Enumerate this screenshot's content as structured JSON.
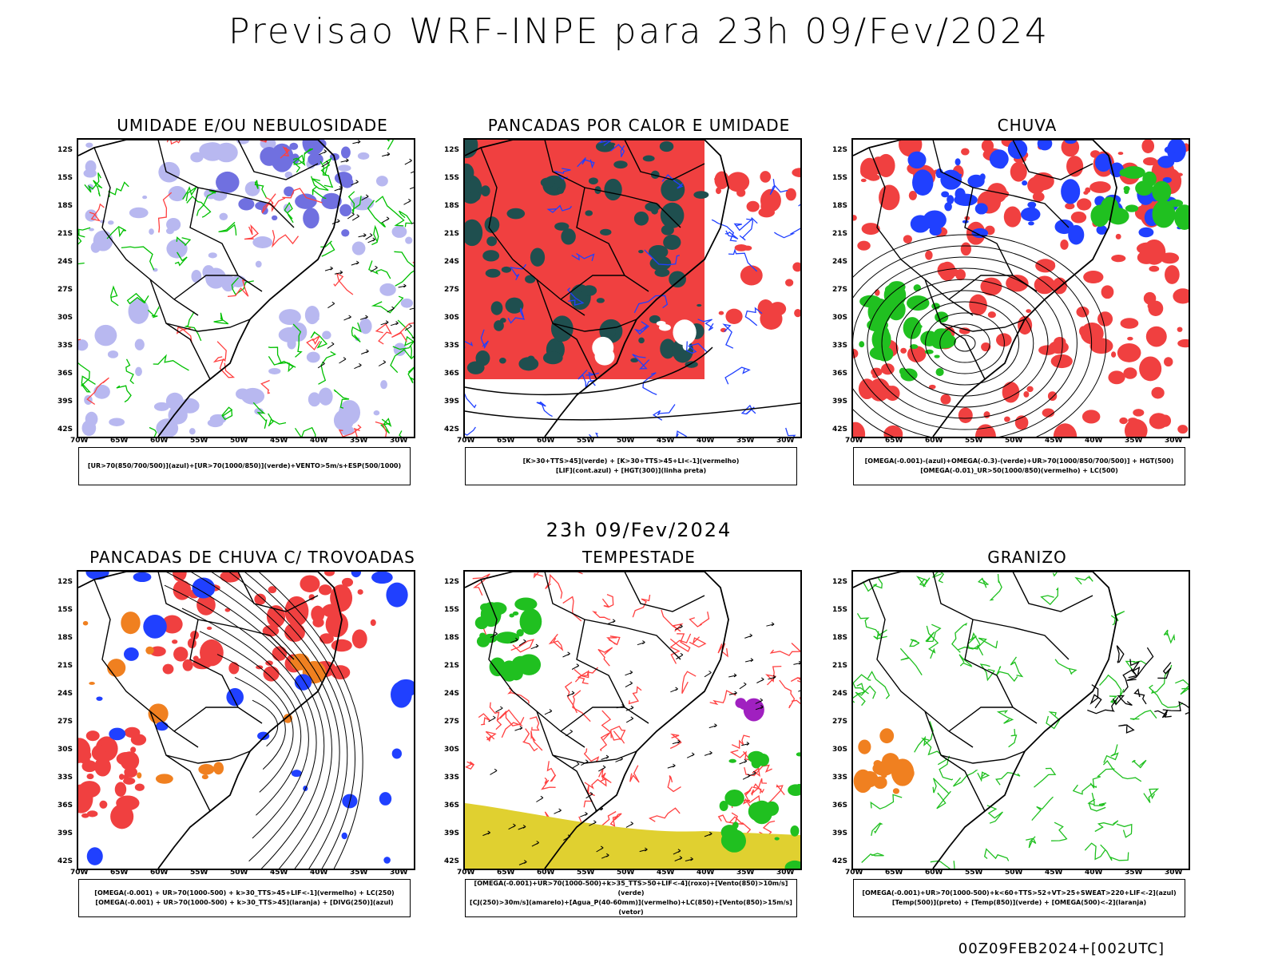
{
  "title": "Previsao WRF-INPE  para 23h 09/Fev/2024",
  "mid_title": "23h 09/Fev/2024",
  "footer": "00Z09FEB2024+[002UTC]",
  "lat_labels": [
    "12S",
    "15S",
    "18S",
    "21S",
    "24S",
    "27S",
    "30S",
    "33S",
    "36S",
    "39S",
    "42S"
  ],
  "lon_labels": [
    "70W",
    "65W",
    "60W",
    "55W",
    "50W",
    "45W",
    "40W",
    "35W",
    "30W"
  ],
  "panels": [
    {
      "title": "UMIDADE E/OU NEBULOSIDADE",
      "legend": [
        "[UR>70(850/700/500)](azul)+[UR>70(1000/850)](verde)+VENTO>5m/s+ESP(500/1000)"
      ],
      "fill_colors": [
        "#b8b8f0",
        "#7070e0"
      ],
      "contour_colors": [
        "#00c000",
        "#ff4040",
        "#000000"
      ]
    },
    {
      "title": "PANCADAS POR CALOR E UMIDADE",
      "legend": [
        "[K>30+TTS>45](verde) + [K>30+TTS>45+LI<-1](vermelho)",
        "[LIF](cont.azul) + [HGT(300)](linha preta)"
      ],
      "fill_colors": [
        "#f04040",
        "#1f4f4f"
      ],
      "contour_colors": [
        "#2040ff",
        "#000000"
      ]
    },
    {
      "title": "CHUVA",
      "legend": [
        "[OMEGA(-0.001)-(azul)+OMEGA(-0.3)-(verde)+UR>70(1000/850/700/500)] + HGT(500)",
        "[OMEGA(-0.01)_UR>50(1000/850)(vermelho) + LC(500)"
      ],
      "fill_colors": [
        "#f04040",
        "#2040ff",
        "#20c020"
      ],
      "contour_colors": [
        "#000000"
      ]
    },
    {
      "title": "PANCADAS DE CHUVA C/ TROVOADAS",
      "legend": [
        "[OMEGA(-0.001) + UR>70(1000-500) + k>30_TTS>45+LIF<-1](vermelho) + LC(250)",
        "[OMEGA(-0.001) + UR>70(1000-500) + k>30_TTS>45](laranja) + [DIVG(250)](azul)"
      ],
      "fill_colors": [
        "#f04040",
        "#f08020",
        "#2040ff"
      ],
      "contour_colors": [
        "#000000"
      ]
    },
    {
      "title": "TEMPESTADE",
      "legend": [
        "[OMEGA(-0.001)+UR>70(1000-500)+k>35_TTS>50+LIF<-4](roxo)+[Vento(850)>10m/s](verde)",
        "[CJ(250)>30m/s](amarelo)+[Agua_P(40-60mm)](vermelho)+LC(850)+[Vento(850)>15m/s](vetor)"
      ],
      "fill_colors": [
        "#e0d030",
        "#20c020",
        "#a020c0"
      ],
      "contour_colors": [
        "#ff4040",
        "#000000"
      ]
    },
    {
      "title": "GRANIZO",
      "legend": [
        "[OMEGA(-0.001)+UR>70(1000-500)+k<60+TTS>52+VT>25+SWEAT>220+LIF<-2](azul)",
        "[Temp(500)](preto) + [Temp(850)](verde) + [OMEGA(500)<-2](laranja)"
      ],
      "fill_colors": [
        "#f08020"
      ],
      "contour_colors": [
        "#20c020",
        "#000000"
      ]
    }
  ]
}
